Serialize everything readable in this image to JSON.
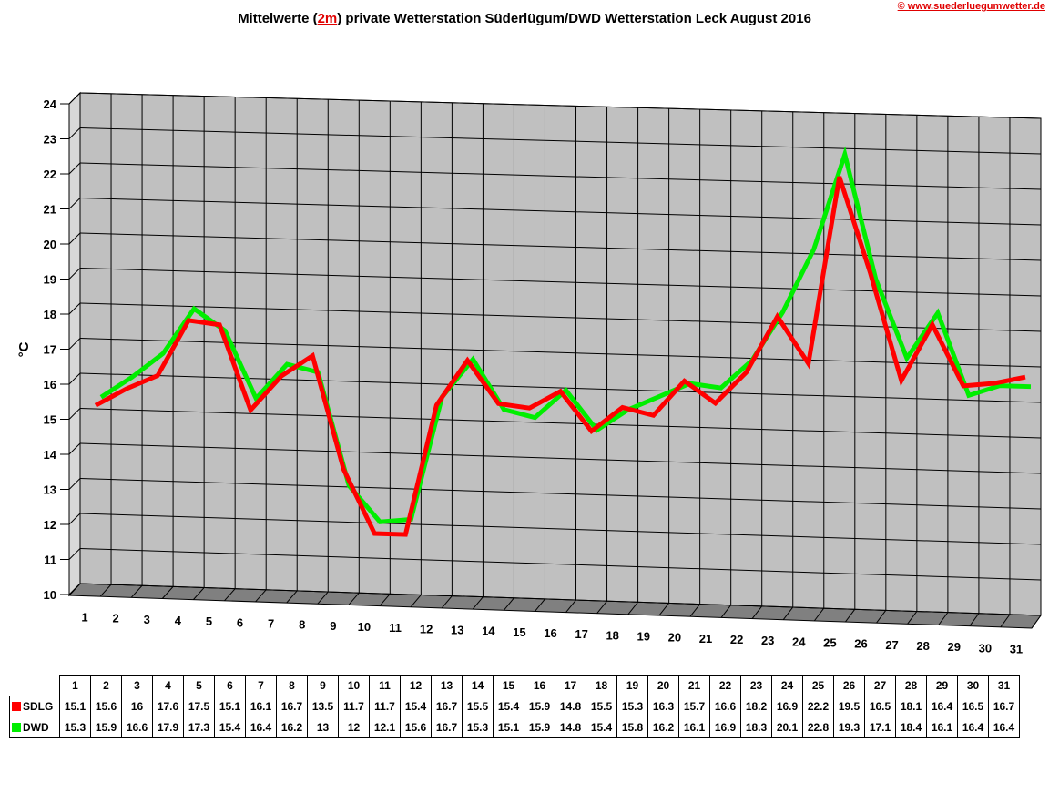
{
  "page": {
    "title_before": "Mittelwerte (",
    "title_highlight": "2m",
    "title_after": ") private Wetterstation Süderlügum/DWD Wetterstation Leck August 2016",
    "copyright": "© www.suederluegumwetter.de"
  },
  "colors": {
    "SDLG": "#ff0000",
    "DWD": "#00ee00",
    "wall": "#c0c0c0",
    "floor": "#808080"
  },
  "chart_data": {
    "type": "line",
    "title": "Mittelwerte (2m) private Wetterstation Süderlügum/DWD Wetterstation Leck August 2016",
    "ylabel": "°C",
    "xlabel": "",
    "ylim": [
      10,
      24
    ],
    "yticks": [
      "10",
      "11",
      "12",
      "13",
      "14",
      "15",
      "16",
      "17",
      "18",
      "19",
      "20",
      "21",
      "22",
      "23",
      "24"
    ],
    "categories": [
      "1",
      "2",
      "3",
      "4",
      "5",
      "6",
      "7",
      "8",
      "9",
      "10",
      "11",
      "12",
      "13",
      "14",
      "15",
      "16",
      "17",
      "18",
      "19",
      "20",
      "21",
      "22",
      "23",
      "24",
      "25",
      "26",
      "27",
      "28",
      "29",
      "30",
      "31"
    ],
    "series": [
      {
        "name": "SDLG",
        "color": "#ff0000",
        "values": [
          15.1,
          15.6,
          16,
          17.6,
          17.5,
          15.1,
          16.1,
          16.7,
          13.5,
          11.7,
          11.7,
          15.4,
          16.7,
          15.5,
          15.4,
          15.9,
          14.8,
          15.5,
          15.3,
          16.3,
          15.7,
          16.6,
          18.2,
          16.9,
          22.2,
          19.5,
          16.5,
          18.1,
          16.4,
          16.5,
          16.7
        ]
      },
      {
        "name": "DWD",
        "color": "#00ee00",
        "values": [
          15.3,
          15.9,
          16.6,
          17.9,
          17.3,
          15.4,
          16.4,
          16.2,
          13,
          12,
          12.1,
          15.6,
          16.7,
          15.3,
          15.1,
          15.9,
          14.8,
          15.4,
          15.8,
          16.2,
          16.1,
          16.9,
          18.3,
          20.1,
          22.8,
          19.3,
          17.1,
          18.4,
          16.1,
          16.4,
          16.4
        ]
      }
    ],
    "grid": true,
    "legend": "data-table-below"
  }
}
